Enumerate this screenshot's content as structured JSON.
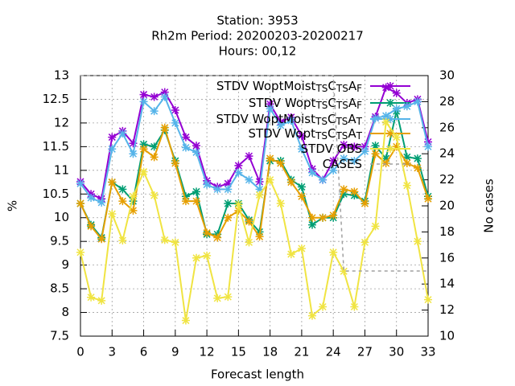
{
  "chart_data": {
    "type": "line",
    "title": [
      "Station:      3953",
      "Rh2m   Period: 20200203-20200217",
      "Hours:  00,12"
    ],
    "xlabel": "Forecast length",
    "ylabel": "%",
    "y2label": "No cases",
    "x": [
      0,
      1,
      2,
      3,
      4,
      5,
      6,
      7,
      8,
      9,
      10,
      11,
      12,
      13,
      14,
      15,
      16,
      17,
      18,
      19,
      20,
      21,
      22,
      23,
      24,
      25,
      26,
      27,
      28,
      29,
      30,
      31,
      32,
      33
    ],
    "xlim": [
      0,
      33
    ],
    "xticks": [
      0,
      3,
      6,
      9,
      12,
      15,
      18,
      21,
      24,
      27,
      30,
      33
    ],
    "ylim": [
      7.5,
      13
    ],
    "yticks": [
      7.5,
      8,
      8.5,
      9,
      9.5,
      10,
      10.5,
      11,
      11.5,
      12,
      12.5,
      13
    ],
    "y2lim": [
      10,
      30
    ],
    "y2ticks": [
      10,
      12,
      14,
      16,
      18,
      20,
      22,
      24,
      26,
      28,
      30
    ],
    "grid": true,
    "legend": "top-right",
    "series": [
      {
        "name": "STDV WoptMoist_{TS}C_{TS}A_{F}",
        "color": "#9400d3",
        "values": [
          10.76,
          10.5,
          10.4,
          11.7,
          11.83,
          11.57,
          12.6,
          12.55,
          12.65,
          12.27,
          11.7,
          11.52,
          10.78,
          10.65,
          10.72,
          11.1,
          11.3,
          10.76,
          12.4,
          12.02,
          12.12,
          11.73,
          11.03,
          10.8,
          11.2,
          11.54,
          11.5,
          11.5,
          12.13,
          12.75,
          12.63,
          12.42,
          12.5,
          11.6
        ]
      },
      {
        "name": "STDV Wopt_{TS}C_{TS}A_{F}",
        "color": "#009e73",
        "values": [
          10.3,
          9.85,
          9.58,
          10.75,
          10.6,
          10.35,
          11.55,
          11.5,
          11.85,
          11.2,
          10.45,
          10.55,
          9.65,
          9.65,
          10.3,
          10.3,
          9.95,
          9.7,
          11.2,
          11.2,
          10.8,
          10.65,
          9.85,
          10.0,
          10.0,
          10.5,
          10.47,
          10.35,
          11.52,
          11.25,
          12.25,
          11.28,
          11.25,
          10.45
        ]
      },
      {
        "name": "STDV WoptMoist_{TS}C_{TS}A_{T}",
        "color": "#56b4e9",
        "values": [
          10.72,
          10.42,
          10.32,
          11.45,
          11.78,
          11.35,
          12.45,
          12.25,
          12.55,
          12.0,
          11.48,
          11.38,
          10.7,
          10.6,
          10.6,
          10.95,
          10.8,
          10.6,
          12.3,
          11.95,
          12.05,
          11.45,
          10.95,
          10.8,
          11.0,
          11.25,
          11.2,
          11.4,
          12.1,
          12.15,
          12.3,
          12.35,
          12.45,
          11.5
        ]
      },
      {
        "name": "STDV Wopt_{TS}C_{TS}A_{T}",
        "color": "#e69f00",
        "values": [
          10.3,
          9.82,
          9.55,
          10.75,
          10.35,
          10.15,
          11.45,
          11.28,
          11.9,
          11.15,
          10.35,
          10.35,
          9.68,
          9.58,
          10.0,
          10.15,
          9.92,
          9.6,
          11.25,
          11.15,
          10.75,
          10.45,
          10.0,
          10.0,
          10.05,
          10.6,
          10.55,
          10.3,
          11.35,
          11.15,
          11.5,
          11.15,
          11.05,
          10.4
        ]
      },
      {
        "name": "STDV OBS",
        "color": "#f0e442",
        "values": [
          9.27,
          8.32,
          8.25,
          10.08,
          9.52,
          10.45,
          10.97,
          10.47,
          9.53,
          9.48,
          7.83,
          9.15,
          9.2,
          8.3,
          8.33,
          10.28,
          9.48,
          10.48,
          10.8,
          10.3,
          9.23,
          9.35,
          7.93,
          8.12,
          9.27,
          8.87,
          8.12,
          9.48,
          9.82,
          12.02,
          11.7,
          10.68,
          9.5,
          8.27
        ]
      },
      {
        "name": "CASES",
        "color": "#a0a0a0",
        "axis": "y2",
        "values": [
          30,
          30,
          30,
          30,
          30,
          30,
          30,
          30,
          30,
          30,
          30,
          30,
          30,
          30,
          30,
          30,
          30,
          30,
          30,
          30,
          30,
          30,
          30,
          30,
          30,
          15,
          15,
          15,
          15,
          15,
          15,
          15,
          15,
          15
        ]
      }
    ]
  }
}
